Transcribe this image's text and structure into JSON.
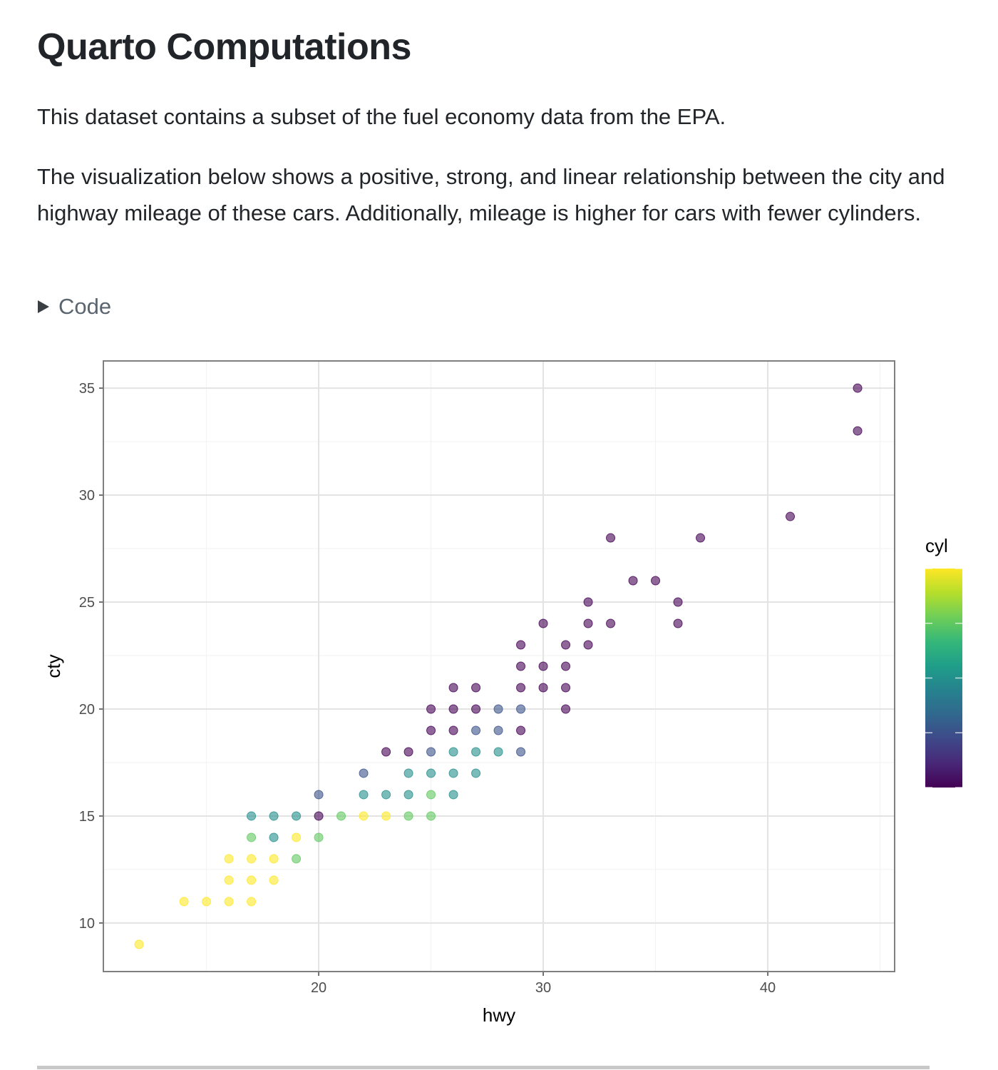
{
  "header": {
    "title": "Quarto Computations"
  },
  "paragraphs": [
    "This dataset contains a subset of the fuel economy data from the EPA.",
    "The visualization below shows a positive, strong, and linear relationship between the city and highway mileage of these cars. Additionally, mileage is higher for cars with fewer cylinders."
  ],
  "code_toggle": "Code",
  "chart_data": {
    "type": "scatter",
    "x_label": "hwy",
    "y_label": "cty",
    "legend_title": "cyl",
    "x": [
      44,
      44,
      41,
      33,
      37,
      34,
      35,
      36,
      32,
      30,
      32,
      33,
      36,
      29,
      31,
      32,
      29,
      30,
      31,
      26,
      27,
      29,
      30,
      31,
      25,
      26,
      27,
      28,
      29,
      31,
      25,
      26,
      27,
      28,
      29,
      23,
      24,
      25,
      26,
      27,
      28,
      29,
      22,
      24,
      25,
      26,
      27,
      20,
      22,
      23,
      24,
      25,
      26,
      17,
      18,
      19,
      20,
      21,
      22,
      23,
      24,
      25,
      17,
      18,
      19,
      20,
      16,
      17,
      18,
      19,
      16,
      17,
      18,
      14,
      15,
      16,
      17,
      12
    ],
    "y": [
      35,
      33,
      29,
      28,
      28,
      26,
      26,
      25,
      25,
      24,
      24,
      24,
      24,
      23,
      23,
      23,
      22,
      22,
      22,
      21,
      21,
      21,
      21,
      21,
      20,
      20,
      20,
      20,
      20,
      20,
      19,
      19,
      19,
      19,
      19,
      18,
      18,
      18,
      18,
      18,
      18,
      18,
      17,
      17,
      17,
      17,
      17,
      16,
      16,
      16,
      16,
      16,
      16,
      15,
      15,
      15,
      15,
      15,
      15,
      15,
      15,
      15,
      14,
      14,
      14,
      14,
      13,
      13,
      13,
      13,
      12,
      12,
      12,
      11,
      11,
      11,
      11,
      9
    ],
    "cyl": [
      4,
      4,
      4,
      4,
      4,
      4,
      4,
      4,
      4,
      4,
      4,
      4,
      4,
      4,
      4,
      4,
      4,
      4,
      4,
      4,
      4,
      4,
      4,
      4,
      4,
      4,
      4,
      5,
      5,
      4,
      4,
      4,
      5,
      5,
      4,
      4,
      4,
      5,
      6,
      6,
      6,
      5,
      5,
      6,
      6,
      6,
      6,
      5,
      6,
      6,
      6,
      7,
      6,
      6,
      6,
      6,
      4,
      7,
      8,
      8,
      7,
      7,
      7,
      6,
      8,
      7,
      8,
      8,
      8,
      7,
      8,
      8,
      8,
      8,
      8,
      8,
      8,
      8
    ],
    "xlim": [
      10.41,
      45.65
    ],
    "ylim": [
      7.73,
      36.27
    ],
    "xticks": [
      20,
      30,
      40
    ],
    "yticks": [
      10,
      15,
      20,
      25,
      30,
      35
    ],
    "x_minor_ticks": [
      15,
      25,
      35,
      45
    ],
    "y_minor_ticks": [
      12.5,
      17.5,
      22.5,
      27.5,
      32.5
    ],
    "clim": [
      4,
      8
    ],
    "colorbar_ticks": [
      4,
      5,
      6,
      7,
      8
    ],
    "colormap": [
      "#440154",
      "#482878",
      "#3e4989",
      "#31688e",
      "#26828e",
      "#1f9e89",
      "#35b779",
      "#6ece58",
      "#b5de2b",
      "#fde725"
    ],
    "grid": true
  }
}
